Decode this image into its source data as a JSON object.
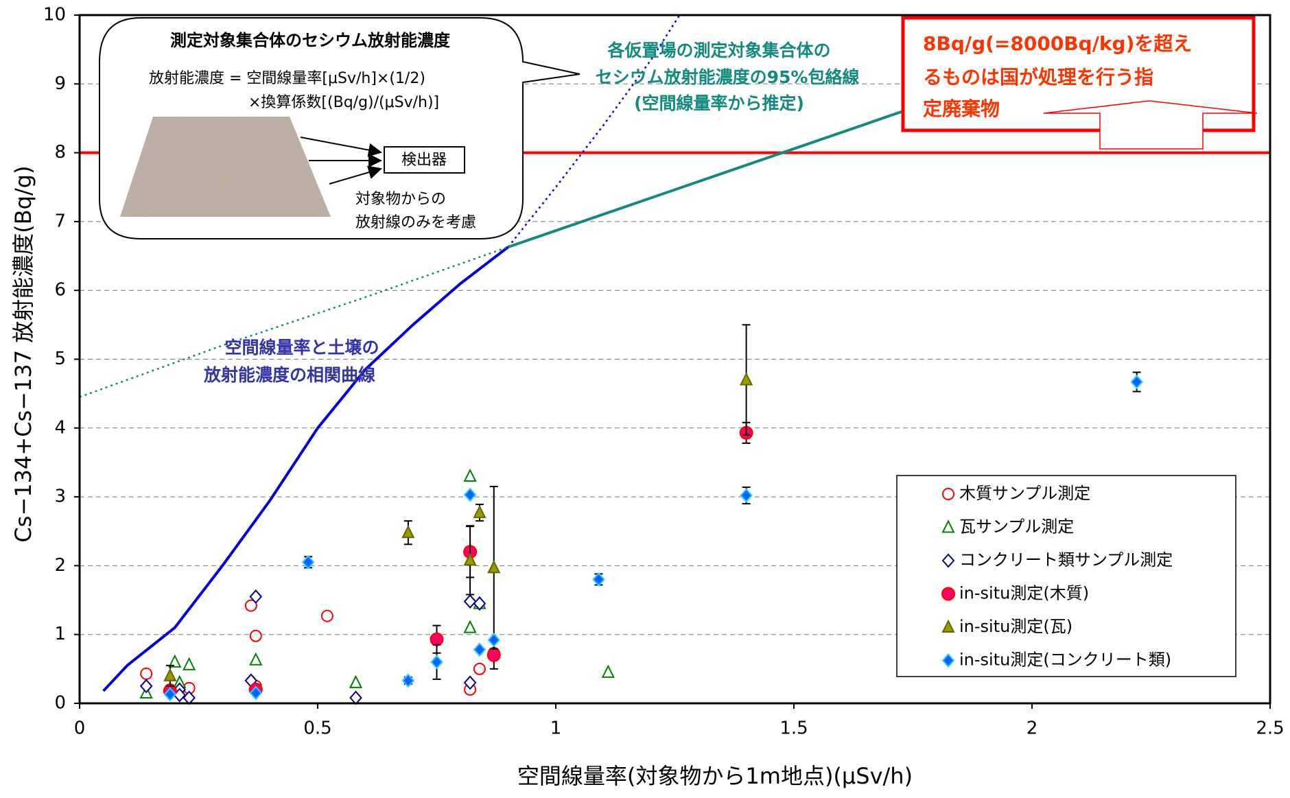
{
  "chart_data": {
    "type": "scatter",
    "x_label": "空間線量率(対象物から1m地点)(μSv/h)",
    "y_label": "Cs−134+Cs−137 放射能濃度(Bq/g)",
    "xlim": [
      0,
      2.5
    ],
    "xticks": [
      0,
      0.5,
      1,
      1.5,
      2,
      2.5
    ],
    "ylim": [
      0,
      10
    ],
    "yticks": [
      0,
      1,
      2,
      3,
      4,
      5,
      6,
      7,
      8,
      9,
      10
    ],
    "grid": true,
    "legend": "lower right",
    "lines": [
      {
        "style": "solid",
        "color": "#0000dd",
        "x": [
          0.05,
          0.1,
          0.2,
          0.3,
          0.4,
          0.5,
          0.6,
          0.7,
          0.8,
          0.9
        ],
        "values": [
          0.18,
          0.55,
          1.1,
          2.0,
          2.95,
          4.0,
          4.85,
          5.5,
          6.1,
          6.63
        ]
      },
      {
        "style": "dotted",
        "color": "#0000dd",
        "x": [
          0.9,
          1.0,
          1.1,
          1.2,
          1.26
        ],
        "values": [
          6.63,
          7.5,
          8.4,
          9.35,
          10
        ]
      },
      {
        "style": "solid",
        "color": "#138a80",
        "x": [
          0.9,
          2.316
        ],
        "values": [
          6.63,
          10
        ]
      },
      {
        "style": "dotted",
        "color": "#138a80",
        "x": [
          0,
          0.3,
          0.6,
          0.9
        ],
        "values": [
          4.45,
          5.2,
          5.9,
          6.63
        ]
      }
    ],
    "threshold": {
      "y": 8,
      "color": "#ff0000"
    },
    "series": [
      {
        "name": "木質サンプル測定",
        "marker": "circle",
        "filled": false,
        "color": "#ff0000",
        "x": [
          0.14,
          0.19,
          0.23,
          0.36,
          0.37,
          0.37,
          0.52,
          0.82,
          0.84,
          0.87
        ],
        "values": [
          0.43,
          0.2,
          0.22,
          1.42,
          0.98,
          0.25,
          1.27,
          0.2,
          0.5,
          0.73
        ]
      },
      {
        "name": "瓦サンプル測定",
        "marker": "triangle",
        "filled": false,
        "color": "#008000",
        "x": [
          0.14,
          0.2,
          0.21,
          0.23,
          0.37,
          0.58,
          0.82,
          0.82,
          0.84,
          1.11
        ],
        "values": [
          0.15,
          0.6,
          0.3,
          0.56,
          0.63,
          0.3,
          3.3,
          1.1,
          1.45,
          0.45
        ]
      },
      {
        "name": "コンクリート類サンプル測定",
        "marker": "diamond",
        "filled": false,
        "color": "#000080",
        "x": [
          0.14,
          0.21,
          0.21,
          0.23,
          0.36,
          0.37,
          0.58,
          0.82,
          0.82,
          0.84
        ],
        "values": [
          0.25,
          0.2,
          0.12,
          0.08,
          0.33,
          1.55,
          0.08,
          1.48,
          0.3,
          1.45
        ]
      },
      {
        "name": "in-situ測定(木質)",
        "marker": "circle",
        "filled": true,
        "color": "#ff0066",
        "x": [
          0.19,
          0.37,
          0.75,
          0.82,
          0.87,
          1.4
        ],
        "values": [
          0.18,
          0.2,
          0.93,
          2.2,
          0.7,
          3.93
        ],
        "errors": [
          null,
          null,
          0.2,
          0.37,
          0.2,
          0.15
        ]
      },
      {
        "name": "in-situ測定(瓦)",
        "marker": "triangle",
        "filled": true,
        "color": "#999900",
        "x": [
          0.19,
          0.69,
          0.82,
          0.84,
          0.87,
          1.4
        ],
        "values": [
          0.4,
          2.48,
          2.08,
          2.77,
          1.97,
          4.7
        ],
        "errors": [
          0.15,
          0.17,
          0.5,
          0.12,
          1.18,
          0.8
        ]
      },
      {
        "name": "in-situ測定(コンクリート類)",
        "marker": "diamond",
        "filled": true,
        "color": "#0066ff",
        "x": [
          0.19,
          0.37,
          0.48,
          0.69,
          0.75,
          0.82,
          0.84,
          0.87,
          1.09,
          1.4,
          2.22
        ],
        "values": [
          0.13,
          0.15,
          2.05,
          0.33,
          0.6,
          3.03,
          0.78,
          0.92,
          1.8,
          3.02,
          4.67
        ],
        "errors": [
          null,
          null,
          0.08,
          0.05,
          0.25,
          null,
          null,
          null,
          0.08,
          0.12,
          0.14
        ]
      }
    ],
    "inset": {
      "title": "測定対象集合体のセシウム放射能濃度",
      "formula_1": "放射能濃度 = 空間線量率[μSv/h]×(1/2)",
      "formula_2": "×換算係数[(Bq/g)/(μSv/h)]",
      "detector": "検出器",
      "note_1": "対象物からの",
      "note_2": "放射線のみを考慮"
    },
    "envelope_label": [
      "各仮置場の測定対象集合体の",
      "セシウム放射能濃度の95%包絡線",
      "(空間線量率から推定)"
    ],
    "regulation_label": [
      "8Bq/g(=8000Bq/kg)を超え",
      "るものは国が処理を行う指",
      "定廃棄物"
    ],
    "curve_label": [
      "空間線量率と土壌の",
      "放射能濃度の相関曲線"
    ]
  }
}
